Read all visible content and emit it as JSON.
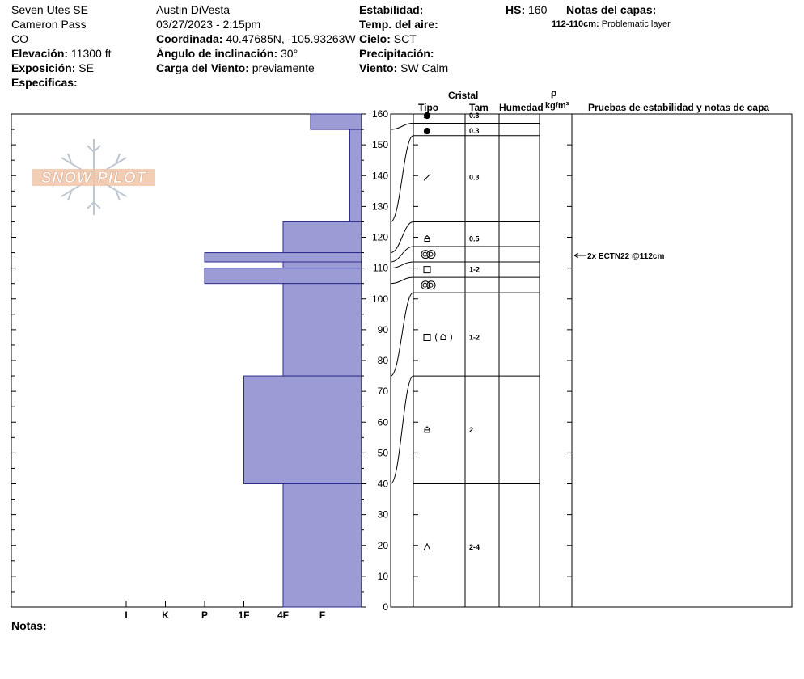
{
  "header": {
    "location": "Seven Utes SE",
    "area": "Cameron Pass",
    "state": "CO",
    "elevation_label": "Elevación:",
    "elevation_value": "11300 ft",
    "aspect_label": "Exposición:",
    "aspect_value": "SE",
    "specifics_label": "Especificas:",
    "observer": "Austin DiVesta",
    "datetime": "03/27/2023 - 2:15pm",
    "coords_label": "Coordinada:",
    "coords_value": "40.47685N, -105.93263W",
    "slope_label": "Ángulo de inclinación:",
    "slope_value": "30°",
    "wind_load_label": "Carga del Viento:",
    "wind_load_value": "previamente",
    "stability_label": "Estabilidad:",
    "air_temp_label": "Temp. del aire:",
    "sky_label": "Cielo:",
    "sky_value": "SCT",
    "precip_label": "Precipitación:",
    "wind_label": "Viento:",
    "wind_value": "SW Calm",
    "hs_label": "HS:",
    "hs_value": "160",
    "layer_notes_label": "Notas del capas:",
    "layer_note_range": "112-110cm:",
    "layer_note_text": "Problematic layer"
  },
  "logo_text": "SNOW PILOT",
  "columns": {
    "crystal": "Cristal",
    "type": "Tipo",
    "size": "Tam",
    "moisture": "Humedad",
    "rho": "ρ",
    "density_unit": "kg/m³",
    "tests": "Pruebas de estabilidad y notas de capa"
  },
  "notes_label": "Notas:",
  "chart_data": {
    "type": "bar",
    "title": "",
    "height_axis": {
      "min": 0,
      "max": 160,
      "step": 10,
      "unit": "cm"
    },
    "hardness_ticks": [
      "I",
      "K",
      "P",
      "1F",
      "4F",
      "F"
    ],
    "hardness_levels": [
      {
        "label": "F",
        "value": 1
      },
      {
        "label": "4F",
        "value": 2
      },
      {
        "label": "1F",
        "value": 3
      },
      {
        "label": "P",
        "value": 4
      },
      {
        "label": "K",
        "value": 5
      },
      {
        "label": "I",
        "value": 6
      }
    ],
    "hardness_profile": [
      {
        "top": 160,
        "bottom": 155,
        "hardness": 1.3
      },
      {
        "top": 155,
        "bottom": 125,
        "hardness": 0.3
      },
      {
        "top": 125,
        "bottom": 115,
        "hardness": 2
      },
      {
        "top": 115,
        "bottom": 112,
        "hardness": 4
      },
      {
        "top": 112,
        "bottom": 110,
        "hardness": 2
      },
      {
        "top": 110,
        "bottom": 105,
        "hardness": 4
      },
      {
        "top": 105,
        "bottom": 75,
        "hardness": 2
      },
      {
        "top": 75,
        "bottom": 40,
        "hardness": 3
      },
      {
        "top": 40,
        "bottom": 0,
        "hardness": 2
      }
    ],
    "layer_boundaries": [
      157,
      153,
      125,
      117,
      112,
      107,
      102,
      75,
      40
    ],
    "layers": [
      {
        "height": 160,
        "crystal": "decomposing",
        "size": "0.3"
      },
      {
        "height": 155,
        "crystal": "decomposing",
        "size": "0.3"
      },
      {
        "height": 140,
        "crystal": "precipitation-particle",
        "size": "0.3"
      },
      {
        "height": 120,
        "crystal": "mixed-form",
        "size": "0.5"
      },
      {
        "height": 115,
        "crystal": "melt-cluster",
        "size": ""
      },
      {
        "height": 110,
        "crystal": "faceted",
        "size": "1-2"
      },
      {
        "height": 105,
        "crystal": "melt-cluster",
        "size": ""
      },
      {
        "height": 88,
        "crystal": "faceted-mixed",
        "size": "1-2"
      },
      {
        "height": 58,
        "crystal": "mixed-form",
        "size": "2"
      },
      {
        "height": 20,
        "crystal": "depth-hoar",
        "size": "2-4"
      }
    ],
    "tests": [
      {
        "height": 112,
        "text": "2x ECTN22 @112cm"
      }
    ]
  }
}
